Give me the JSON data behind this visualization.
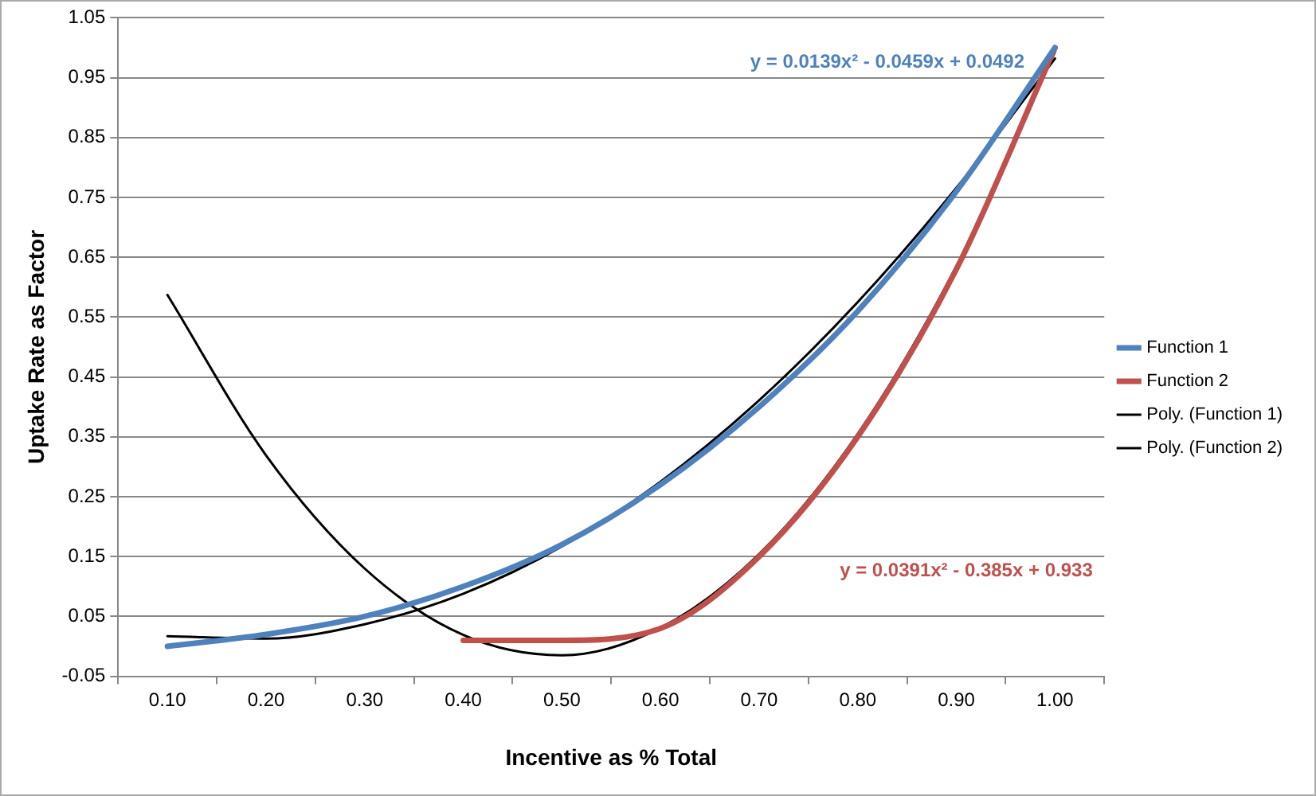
{
  "chart_data": {
    "type": "line",
    "xlabel": "Incentive as % Total",
    "ylabel": "Uptake Rate as Factor",
    "categories": [
      "0.10",
      "0.20",
      "0.30",
      "0.40",
      "0.50",
      "0.60",
      "0.70",
      "0.80",
      "0.90",
      "1.00"
    ],
    "series": [
      {
        "name": "Function 1",
        "color": "#4f81bd",
        "values": [
          0.0,
          0.02,
          0.05,
          0.1,
          0.17,
          0.27,
          0.4,
          0.56,
          0.76,
          1.0
        ]
      },
      {
        "name": "Function 2",
        "color": "#c0504d",
        "values": [
          null,
          null,
          null,
          0.01,
          0.01,
          0.03,
          0.15,
          0.35,
          0.63,
          1.0
        ]
      },
      {
        "name": "Poly. (Function 1)",
        "color": "#000000",
        "values": [
          0.017,
          0.013,
          0.037,
          0.088,
          0.167,
          0.275,
          0.411,
          0.575,
          0.766,
          0.982
        ]
      },
      {
        "name": "Poly. (Function 2)",
        "color": "#000000",
        "values": [
          0.587,
          0.319,
          0.13,
          0.019,
          -0.015,
          0.031,
          0.154,
          0.355,
          0.635,
          0.993
        ]
      }
    ],
    "ylim": [
      -0.05,
      1.05
    ],
    "yticks": [
      -0.05,
      0.05,
      0.15,
      0.25,
      0.35,
      0.45,
      0.55,
      0.65,
      0.75,
      0.85,
      0.95,
      1.05
    ],
    "grid": "y",
    "legend": "right",
    "marker": "none",
    "line_style": "solid",
    "annotations": [
      "y = 0.0139x² - 0.0459x + 0.0492",
      "y = 0.0391x² - 0.385x + 0.933"
    ]
  }
}
